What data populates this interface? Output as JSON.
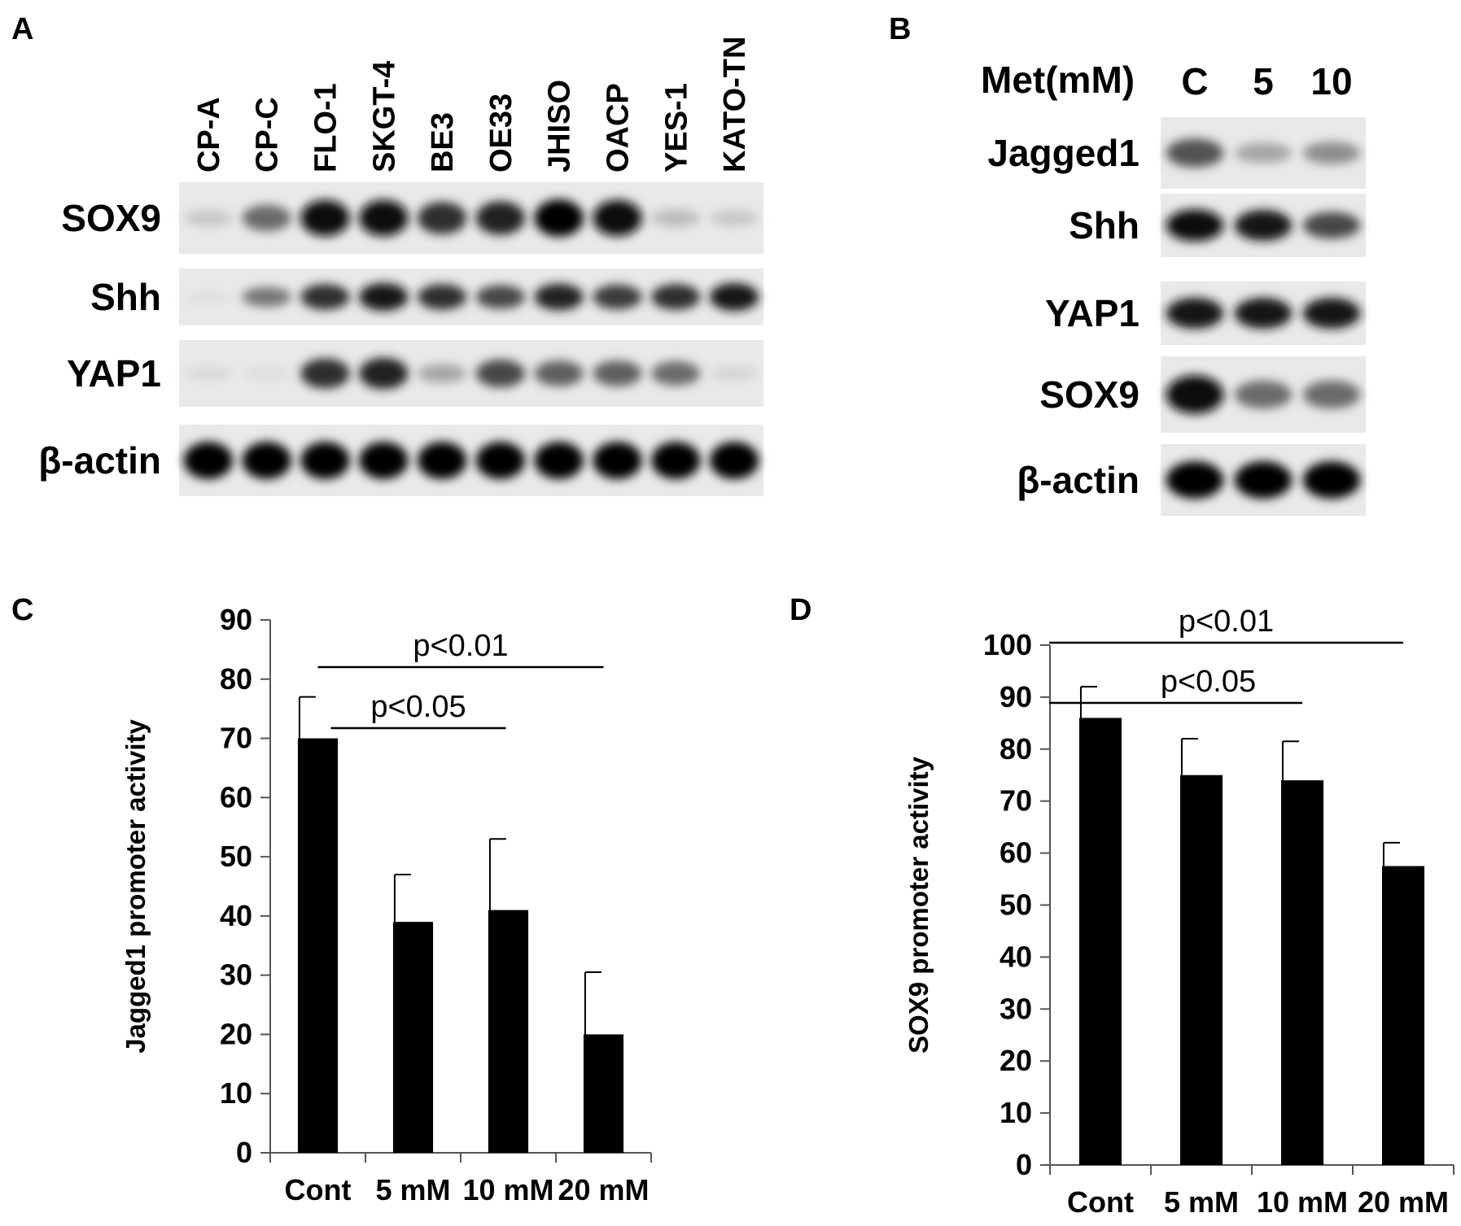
{
  "figure": {
    "panels": {
      "a": {
        "letter": "A",
        "lanes": [
          "CP-A",
          "CP-C",
          "FLO-1",
          "SKGT-4",
          "BE3",
          "OE33",
          "JHISO",
          "OACP",
          "YES-1",
          "KATO-TN"
        ],
        "rows": [
          {
            "label": "SOX9",
            "intensity": [
              0.15,
              0.55,
              0.95,
              0.95,
              0.8,
              0.85,
              1.0,
              0.95,
              0.2,
              0.15
            ]
          },
          {
            "label": "Shh",
            "intensity": [
              0.05,
              0.5,
              0.8,
              0.9,
              0.8,
              0.7,
              0.85,
              0.75,
              0.8,
              0.9
            ]
          },
          {
            "label": "YAP1",
            "intensity": [
              0.08,
              0.06,
              0.8,
              0.85,
              0.3,
              0.7,
              0.6,
              0.6,
              0.55,
              0.1
            ]
          },
          {
            "label": "β-actin",
            "intensity": [
              1,
              1,
              1,
              1,
              1,
              1,
              1,
              1,
              1,
              1
            ]
          }
        ]
      },
      "b": {
        "letter": "B",
        "header": "Met(mM)",
        "lanes": [
          "C",
          "5",
          "10"
        ],
        "rows": [
          {
            "label": "Jagged1",
            "intensity": [
              0.65,
              0.3,
              0.4
            ]
          },
          {
            "label": "Shh",
            "intensity": [
              0.95,
              0.9,
              0.7
            ]
          },
          {
            "label": "YAP1",
            "intensity": [
              0.9,
              0.9,
              0.9
            ]
          },
          {
            "label": "SOX9",
            "intensity": [
              0.95,
              0.55,
              0.55
            ]
          },
          {
            "label": "β-actin",
            "intensity": [
              1,
              1,
              1
            ]
          }
        ]
      }
    }
  },
  "chart_data": [
    {
      "panel": "C",
      "type": "bar",
      "categories": [
        "Cont",
        "5 mM",
        "10 mM",
        "20 mM"
      ],
      "values": [
        70,
        39,
        41,
        20
      ],
      "error": [
        7,
        8,
        12,
        10.5
      ],
      "ylabel": "Jagged1 promoter activity",
      "ylim": [
        0,
        90
      ],
      "yticks": [
        "0",
        "10",
        "20",
        "30",
        "40",
        "50",
        "60",
        "70",
        "80",
        "90"
      ],
      "bar_color": "#000000",
      "annotations": [
        {
          "text": "p<0.01",
          "from": 0,
          "to": 3
        },
        {
          "text": "p<0.05",
          "from": 0,
          "to": 2
        }
      ]
    },
    {
      "panel": "D",
      "type": "bar",
      "categories": [
        "Cont",
        "5 mM",
        "10 mM",
        "20 mM"
      ],
      "values": [
        86,
        75,
        74,
        57.5
      ],
      "error": [
        6,
        7,
        7.5,
        4.5
      ],
      "ylabel": "SOX9 promoter activity",
      "ylim": [
        0,
        100
      ],
      "yticks": [
        "0",
        "10",
        "20",
        "30",
        "40",
        "50",
        "60",
        "70",
        "80",
        "90",
        "100"
      ],
      "bar_color": "#000000",
      "annotations": [
        {
          "text": "p<0.01",
          "from": 0,
          "to": 3
        },
        {
          "text": "p<0.05",
          "from": 0,
          "to": 2
        }
      ]
    }
  ]
}
